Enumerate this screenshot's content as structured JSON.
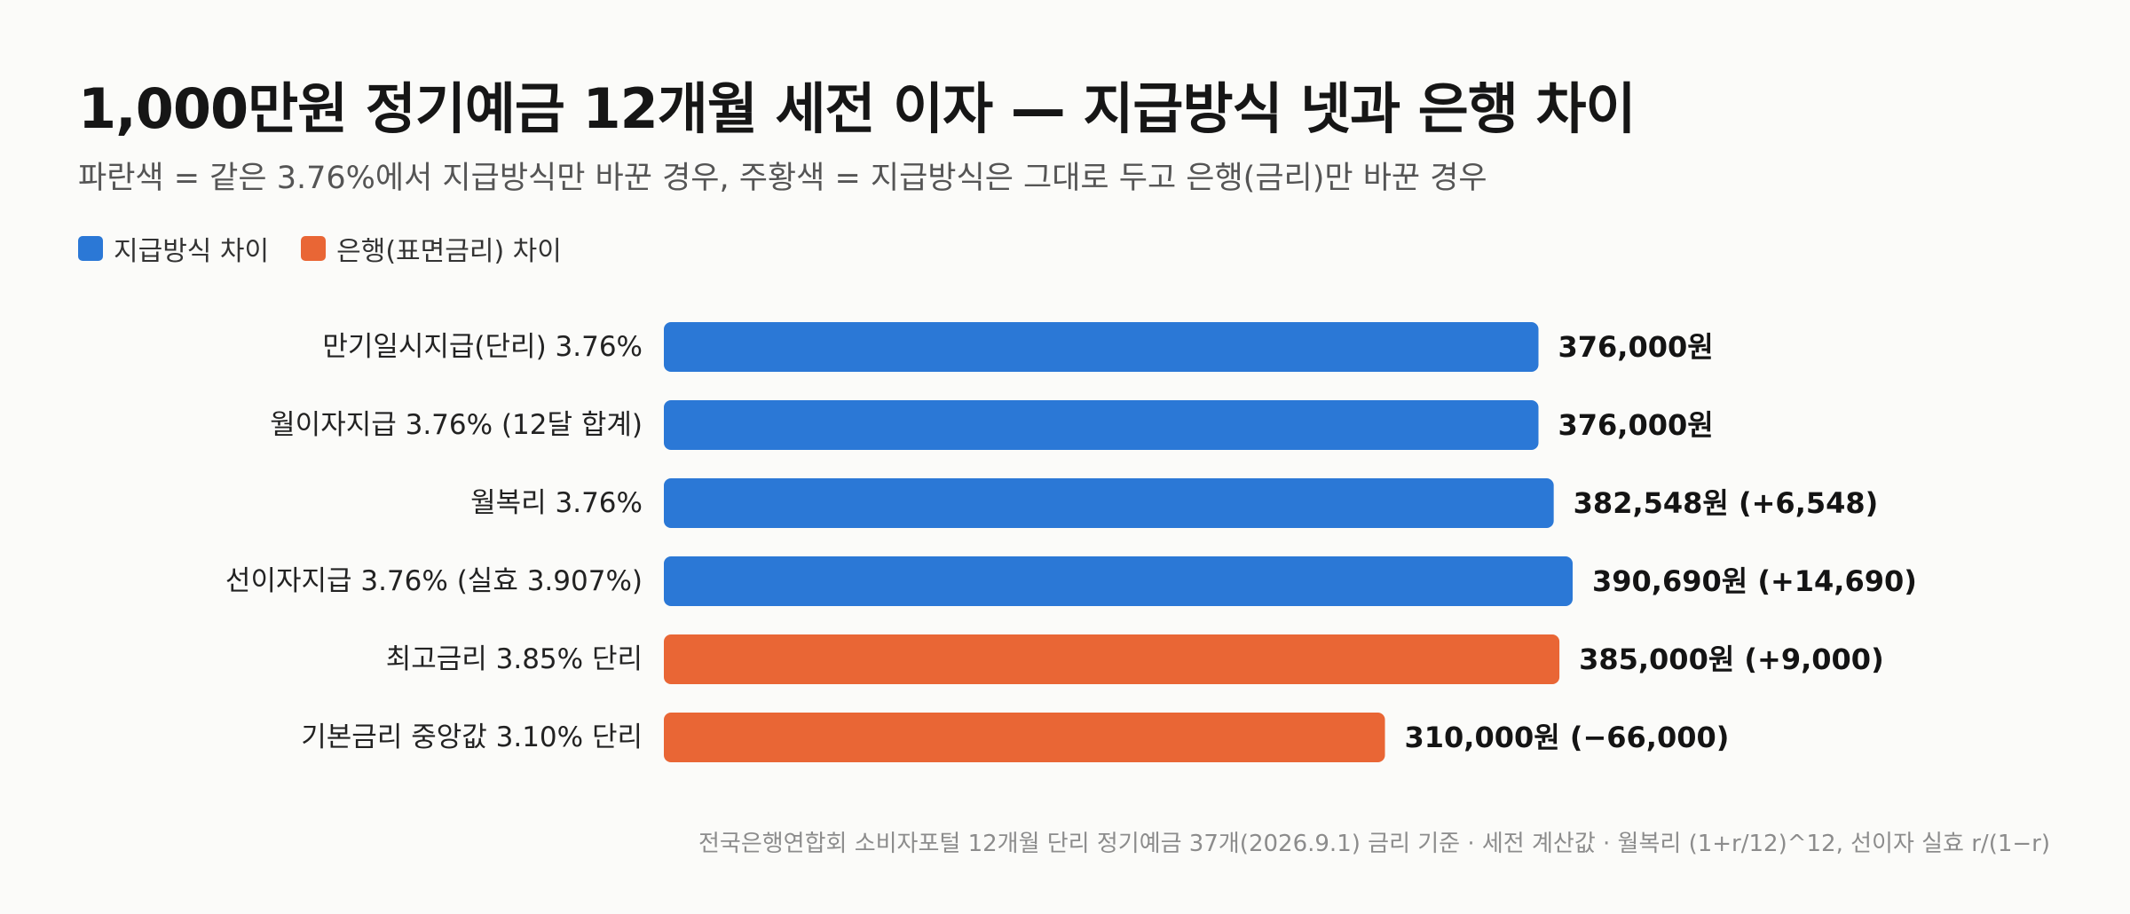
{
  "title": "1,000만원 정기예금 12개월 세전 이자 — 지급방식 넷과 은행 차이",
  "subtitle": "파란색 = 같은 3.76%에서 지급방식만 바꾼 경우, 주황색 = 지급방식은 그대로 두고 은행(금리)만 바꾼 경우",
  "legend": [
    {
      "label": "지급방식 차이",
      "color": "#2b78d6"
    },
    {
      "label": "은행(표면금리) 차이",
      "color": "#e96635"
    }
  ],
  "footnote": "전국은행연합회 소비자포털 12개월 단리 정기예금 37개(2026.9.1) 금리 기준 · 세전 계산값 · 월복리 (1+r/12)^12, 선이자 실효 r/(1−r)",
  "chart_data": {
    "type": "bar",
    "orientation": "horizontal",
    "xlim": [
      0,
      390690
    ],
    "grid": false,
    "categories": [
      "만기일시지급(단리) 3.76%",
      "월이자지급 3.76% (12달 합계)",
      "월복리 3.76%",
      "선이자지급 3.76% (실효 3.907%)",
      "최고금리 3.85% 단리",
      "기본금리 중앙값 3.10% 단리"
    ],
    "values": [
      376000,
      376000,
      382548,
      390690,
      385000,
      310000
    ],
    "value_labels": [
      "376,000원",
      "376,000원",
      "382,548원 (+6,548)",
      "390,690원 (+14,690)",
      "385,000원 (+9,000)",
      "310,000원 (−66,000)"
    ],
    "groups": [
      "지급방식 차이",
      "지급방식 차이",
      "지급방식 차이",
      "지급방식 차이",
      "은행(표면금리) 차이",
      "은행(표면금리) 차이"
    ]
  }
}
